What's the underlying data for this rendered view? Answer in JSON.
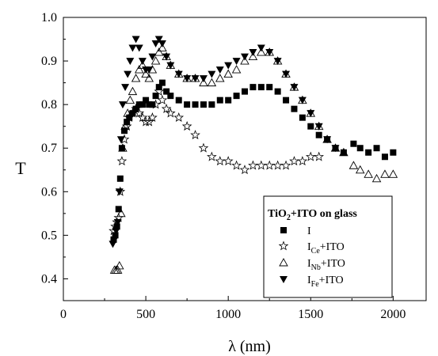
{
  "chart_data": {
    "type": "scatter",
    "xlabel": "λ (nm)",
    "ylabel": "T",
    "xlim": [
      0,
      2200
    ],
    "ylim": [
      0.35,
      1.0
    ],
    "xticks": [
      0,
      500,
      1000,
      1500,
      2000
    ],
    "yticks": [
      0.4,
      0.5,
      0.6,
      0.7,
      0.8,
      0.9,
      1.0
    ],
    "xtick_labels": [
      "0",
      "500",
      "1000",
      "1500",
      "2000"
    ],
    "ytick_labels": [
      "0.4",
      "0.5",
      "0.6",
      "0.7",
      "0.8",
      "0.9",
      "1.0"
    ],
    "grid": false,
    "legend": {
      "title": "TiO2+ITO on glass",
      "title_main": "TiO",
      "title_sub": "2",
      "title_rest": "+ITO on glass",
      "placement": "bottom-right",
      "entries": [
        {
          "main": "I",
          "sub": "",
          "rest": ""
        },
        {
          "main": "I",
          "sub": "Ce",
          "rest": "+ITO"
        },
        {
          "main": "I",
          "sub": "Nb",
          "rest": "+ITO"
        },
        {
          "main": "I",
          "sub": "Fe",
          "rest": "+ITO"
        }
      ]
    },
    "series": [
      {
        "name": "I",
        "marker": "filled-square",
        "x": [
          305,
          315,
          325,
          335,
          345,
          355,
          370,
          385,
          400,
          420,
          440,
          460,
          480,
          500,
          520,
          540,
          560,
          580,
          600,
          625,
          650,
          700,
          750,
          800,
          850,
          900,
          950,
          1000,
          1050,
          1100,
          1150,
          1200,
          1250,
          1300,
          1350,
          1400,
          1450,
          1500,
          1550,
          1600,
          1650,
          1700,
          1760,
          1800,
          1850,
          1900,
          1950,
          2000
        ],
        "y": [
          0.49,
          0.5,
          0.52,
          0.56,
          0.63,
          0.7,
          0.74,
          0.76,
          0.77,
          0.78,
          0.79,
          0.8,
          0.8,
          0.81,
          0.8,
          0.8,
          0.82,
          0.84,
          0.85,
          0.83,
          0.82,
          0.81,
          0.8,
          0.8,
          0.8,
          0.8,
          0.81,
          0.81,
          0.82,
          0.83,
          0.84,
          0.84,
          0.84,
          0.83,
          0.81,
          0.79,
          0.77,
          0.75,
          0.73,
          0.72,
          0.7,
          0.69,
          0.71,
          0.7,
          0.69,
          0.7,
          0.68,
          0.69
        ]
      },
      {
        "name": "ICe+ITO",
        "marker": "open-star",
        "x": [
          305,
          315,
          325,
          335,
          345,
          355,
          370,
          385,
          400,
          420,
          440,
          460,
          480,
          500,
          520,
          540,
          560,
          580,
          600,
          625,
          650,
          700,
          750,
          800,
          850,
          900,
          950,
          1000,
          1050,
          1100,
          1150,
          1200,
          1250,
          1300,
          1350,
          1400,
          1450,
          1500,
          1550
        ],
        "y": [
          0.51,
          0.52,
          0.53,
          0.54,
          0.6,
          0.67,
          0.72,
          0.75,
          0.77,
          0.78,
          0.79,
          0.78,
          0.77,
          0.76,
          0.76,
          0.77,
          0.8,
          0.83,
          0.81,
          0.79,
          0.78,
          0.77,
          0.75,
          0.73,
          0.7,
          0.68,
          0.67,
          0.67,
          0.66,
          0.65,
          0.66,
          0.66,
          0.66,
          0.66,
          0.66,
          0.67,
          0.67,
          0.68,
          0.68
        ]
      },
      {
        "name": "INb+ITO",
        "marker": "open-triangle",
        "x": [
          310,
          320,
          330,
          340,
          350,
          360,
          375,
          390,
          405,
          420,
          440,
          460,
          480,
          500,
          520,
          540,
          560,
          580,
          600,
          625,
          650,
          700,
          750,
          800,
          850,
          900,
          950,
          1000,
          1050,
          1100,
          1150,
          1200,
          1250,
          1300,
          1350,
          1400,
          1450,
          1500,
          1550,
          1600,
          1650,
          1700,
          1760,
          1800,
          1850,
          1900,
          1950,
          2000
        ],
        "y": [
          0.42,
          0.42,
          0.42,
          0.43,
          0.55,
          0.7,
          0.75,
          0.78,
          0.81,
          0.83,
          0.86,
          0.88,
          0.89,
          0.87,
          0.86,
          0.88,
          0.9,
          0.92,
          0.93,
          0.91,
          0.89,
          0.87,
          0.86,
          0.86,
          0.85,
          0.85,
          0.86,
          0.87,
          0.88,
          0.9,
          0.91,
          0.92,
          0.92,
          0.9,
          0.87,
          0.84,
          0.81,
          0.78,
          0.75,
          0.72,
          0.7,
          0.69,
          0.66,
          0.65,
          0.64,
          0.63,
          0.64,
          0.64
        ]
      },
      {
        "name": "IFe+ITO",
        "marker": "filled-triangle-down",
        "x": [
          300,
          310,
          320,
          330,
          340,
          350,
          360,
          375,
          390,
          405,
          420,
          440,
          460,
          480,
          500,
          520,
          540,
          560,
          580,
          600,
          625,
          650,
          700,
          750,
          800,
          850,
          900,
          950,
          1000,
          1050,
          1100,
          1150,
          1200,
          1250,
          1300,
          1350,
          1400,
          1450,
          1500,
          1550,
          1600,
          1650
        ],
        "y": [
          0.48,
          0.49,
          0.51,
          0.53,
          0.6,
          0.72,
          0.8,
          0.84,
          0.87,
          0.9,
          0.93,
          0.95,
          0.93,
          0.9,
          0.88,
          0.88,
          0.91,
          0.94,
          0.95,
          0.94,
          0.91,
          0.89,
          0.87,
          0.86,
          0.86,
          0.86,
          0.87,
          0.88,
          0.89,
          0.9,
          0.91,
          0.92,
          0.93,
          0.92,
          0.9,
          0.87,
          0.84,
          0.81,
          0.78,
          0.75,
          0.72,
          0.7
        ]
      }
    ]
  }
}
